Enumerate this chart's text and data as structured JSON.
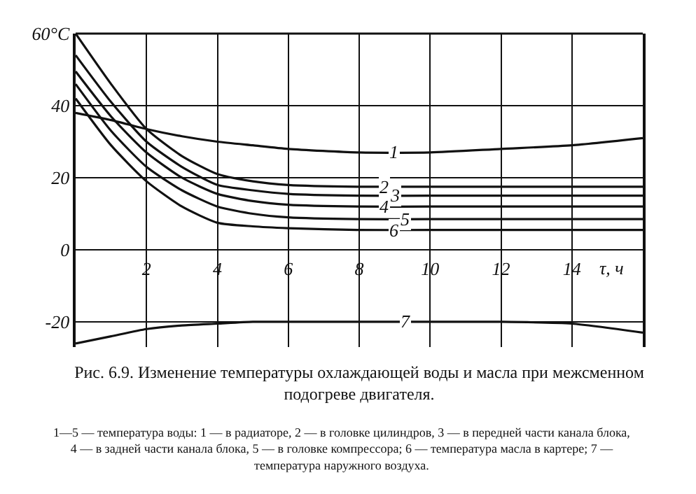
{
  "chart_data": {
    "type": "line",
    "title": "Рис. 6.9. Изменение температуры охлаждающей воды и масла при межсменном подогреве двигателя.",
    "xlabel": "τ, ч",
    "x": [
      0,
      1,
      2,
      3,
      4,
      5,
      6,
      8,
      10,
      12,
      14,
      16
    ],
    "series": [
      {
        "name": "1",
        "color": "#111111",
        "values": [
          38,
          36,
          33.5,
          31.5,
          30,
          29,
          28,
          27,
          27,
          28,
          29,
          31
        ]
      },
      {
        "name": "2",
        "color": "#111111",
        "values": [
          60,
          46,
          33.5,
          26,
          21,
          19,
          18,
          17.5,
          17.5,
          17.5,
          17.5,
          17.5
        ]
      },
      {
        "name": "3",
        "color": "#111111",
        "values": [
          54,
          41,
          30,
          23,
          18,
          16.5,
          15.5,
          15,
          15,
          15,
          15,
          15
        ]
      },
      {
        "name": "4",
        "color": "#111111",
        "values": [
          49.5,
          37,
          27,
          20,
          15.5,
          13.5,
          12.5,
          12,
          12,
          12,
          12,
          12
        ]
      },
      {
        "name": "5",
        "color": "#111111",
        "values": [
          46,
          33,
          23,
          16.5,
          12,
          10,
          9,
          8.5,
          8.5,
          8.5,
          8.5,
          8.5
        ]
      },
      {
        "name": "6",
        "color": "#111111",
        "values": [
          42,
          29,
          19,
          12,
          7.5,
          6.5,
          6,
          5.5,
          5.5,
          5.5,
          5.5,
          5.5
        ]
      },
      {
        "name": "7",
        "color": "#111111",
        "values": [
          -26,
          -24,
          -22,
          -21,
          -20.5,
          -20,
          -20,
          -20,
          -20,
          -20,
          -20.5,
          -23
        ]
      }
    ],
    "xlim": [
      0,
      16
    ],
    "xticks": [
      2,
      4,
      6,
      8,
      10,
      12,
      14
    ],
    "ylim": [
      -27,
      60
    ],
    "yticks": [
      -20,
      0,
      20,
      40,
      {
        "value": 60,
        "label": "60°C"
      }
    ],
    "grid": true,
    "marker": "none",
    "line_style": "solid",
    "annotations": [
      "1—5 — температура воды: 1 — в радиаторе, 2 — в головке цилиндров, 3 — в передней части канала блока, 4 — в задней части канала блока, 5 — в головке компрессора; 6 — температура масла в картере; 7 — температура наружного воздуха."
    ]
  }
}
